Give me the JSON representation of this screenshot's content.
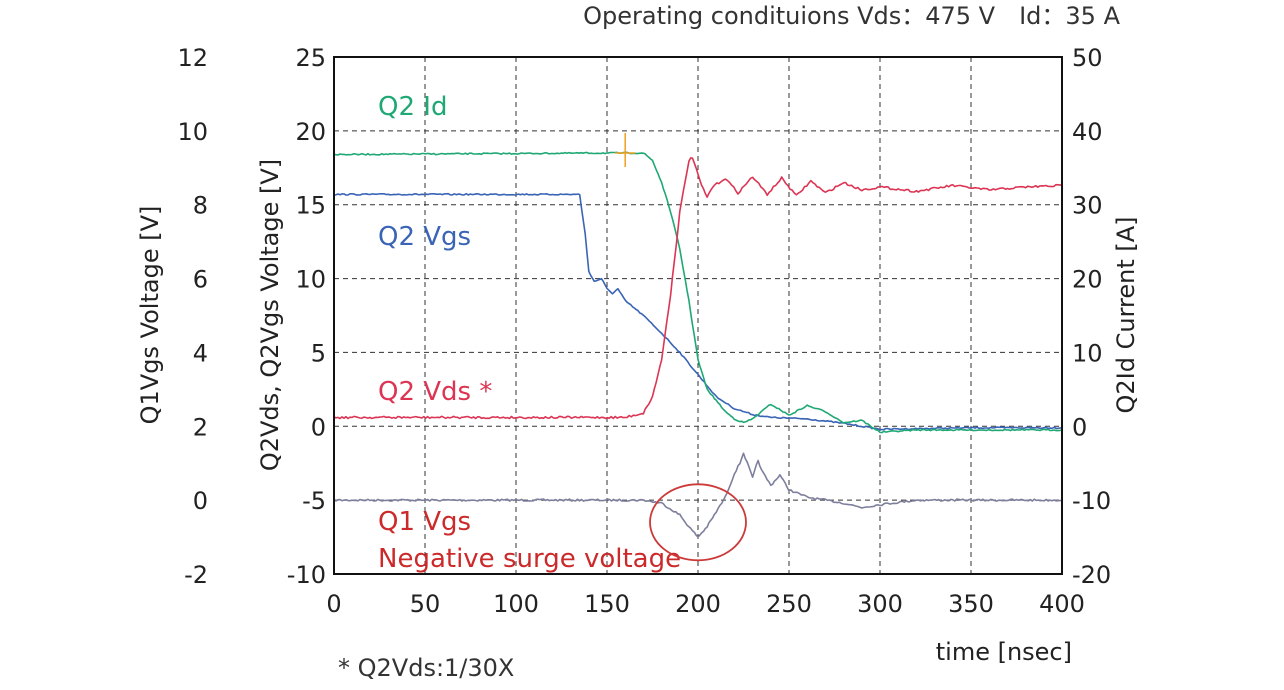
{
  "header": {
    "conditions": "Operating condituions Vds：475 V　Id：35 A"
  },
  "footnote": "* Q2Vds:1/30X",
  "colors": {
    "Q2 Id": "#1fa874",
    "Q2 Vgs": "#3a64b6",
    "Q2 Vds *": "#dc3554",
    "Q1 Vgs": "#7d7f9c",
    "circle": "#cc3a3a",
    "marker": "#f0a020",
    "annotation": "#cc2a2a"
  },
  "chart_data": {
    "type": "line",
    "xlabel": "time [nsec]",
    "xlim": [
      0,
      400
    ],
    "x_ticks": [
      "0",
      "50",
      "100",
      "150",
      "200",
      "250",
      "300",
      "350",
      "400"
    ],
    "axes": {
      "left_outer": {
        "label": "Q1Vgs Voltage [V]",
        "range": [
          -2,
          12
        ],
        "ticks": [
          "12",
          "10",
          "8",
          "6",
          "4",
          "2",
          "0",
          "-2"
        ]
      },
      "left_inner": {
        "label": "Q2Vds, Q2Vgs Voltage [V]",
        "range": [
          -10,
          25
        ],
        "ticks": [
          "25",
          "20",
          "15",
          "10",
          "5",
          "0",
          "-5",
          "-10"
        ]
      },
      "right": {
        "label": "Q2Id Current [A]",
        "range": [
          -20,
          50
        ],
        "ticks": [
          "50",
          "40",
          "30",
          "20",
          "10",
          "0",
          "-10",
          "-20"
        ]
      }
    },
    "grid": true,
    "series": [
      {
        "name": "Q2 Id",
        "axis": "right",
        "x": [
          0,
          150,
          170,
          175,
          180,
          185,
          190,
          195,
          200,
          205,
          210,
          215,
          220,
          225,
          230,
          240,
          250,
          260,
          270,
          280,
          290,
          300,
          320,
          350,
          400
        ],
        "y": [
          36.8,
          37.0,
          37.0,
          36.0,
          33.0,
          29.0,
          24.0,
          17.0,
          9.0,
          5.0,
          3.5,
          2.0,
          1.0,
          0.5,
          1.0,
          3.0,
          1.5,
          2.8,
          2.0,
          0.5,
          0.8,
          -0.8,
          -0.5,
          -0.5,
          -0.5
        ]
      },
      {
        "name": "Q2 Vgs",
        "axis": "left_inner",
        "x": [
          0,
          130,
          135,
          138,
          140,
          143,
          147,
          150,
          153,
          156,
          160,
          165,
          170,
          180,
          190,
          200,
          210,
          220,
          230,
          240,
          260,
          280,
          300,
          350,
          400
        ],
        "y": [
          15.7,
          15.7,
          15.7,
          13.0,
          10.5,
          9.8,
          10.0,
          9.3,
          9.0,
          9.3,
          8.5,
          8.0,
          7.5,
          6.3,
          5.0,
          3.5,
          2.0,
          1.2,
          0.8,
          0.6,
          0.5,
          0.2,
          -0.2,
          -0.1,
          -0.1
        ]
      },
      {
        "name": "Q2 Vds *",
        "axis": "left_inner",
        "x": [
          0,
          160,
          170,
          175,
          180,
          185,
          190,
          195,
          197,
          200,
          203,
          205,
          208,
          215,
          222,
          230,
          238,
          246,
          254,
          262,
          270,
          280,
          290,
          300,
          320,
          340,
          360,
          380,
          400
        ],
        "y": [
          0.6,
          0.6,
          0.9,
          2.0,
          4.5,
          9.0,
          14.5,
          18.0,
          18.2,
          17.0,
          16.0,
          15.5,
          16.2,
          16.8,
          15.8,
          16.9,
          15.7,
          16.8,
          15.6,
          16.6,
          15.8,
          16.5,
          16.0,
          16.2,
          15.9,
          16.3,
          16.0,
          16.2,
          16.3
        ]
      },
      {
        "name": "Q1 Vgs",
        "axis": "left_inner",
        "x": [
          0,
          170,
          180,
          190,
          195,
          200,
          205,
          210,
          215,
          220,
          223,
          225,
          228,
          230,
          233,
          235,
          240,
          245,
          250,
          260,
          280,
          290,
          300,
          320,
          350,
          400
        ],
        "y": [
          -5.0,
          -5.0,
          -5.2,
          -6.0,
          -6.8,
          -7.5,
          -6.8,
          -5.8,
          -4.8,
          -3.2,
          -2.5,
          -1.8,
          -2.8,
          -3.5,
          -2.3,
          -3.0,
          -4.0,
          -3.3,
          -4.3,
          -4.8,
          -5.2,
          -5.5,
          -5.3,
          -5.0,
          -5.0,
          -5.0
        ]
      }
    ],
    "series_labels": [
      "Q2 Id",
      "Q2 Vgs",
      "Q2 Vds *",
      "Q1 Vgs"
    ],
    "annotations": {
      "surge_text": "Negative surge voltage",
      "surge_center": [
        200,
        -6.5
      ]
    }
  }
}
